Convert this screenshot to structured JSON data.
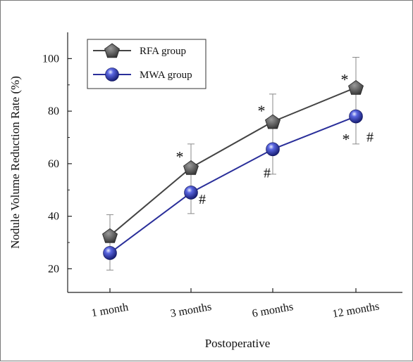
{
  "chart_data": {
    "type": "line",
    "title": "",
    "xlabel": "Postoperative",
    "ylabel": "Nodule Volume Reduction Rate (%)",
    "categories": [
      "1 month",
      "3 months",
      "6 months",
      "12 months"
    ],
    "yticks": [
      20,
      40,
      60,
      80,
      100
    ],
    "ylim": [
      11,
      110
    ],
    "legend_position": "top-left",
    "series": [
      {
        "name": "RFA group",
        "marker": "pentagon",
        "color": "#444444",
        "values": [
          32.6,
          58.5,
          76.0,
          89.0
        ],
        "error": [
          8.0,
          9.0,
          10.5,
          11.5
        ],
        "annotations": [
          "",
          "*",
          "*",
          "*"
        ]
      },
      {
        "name": "MWA group",
        "marker": "sphere",
        "color": "#2a2f9a",
        "values": [
          26.0,
          49.0,
          65.5,
          78.0
        ],
        "error": [
          6.5,
          8.0,
          9.5,
          10.5
        ],
        "annotations": [
          "",
          "#",
          "#",
          "* #"
        ]
      }
    ]
  }
}
